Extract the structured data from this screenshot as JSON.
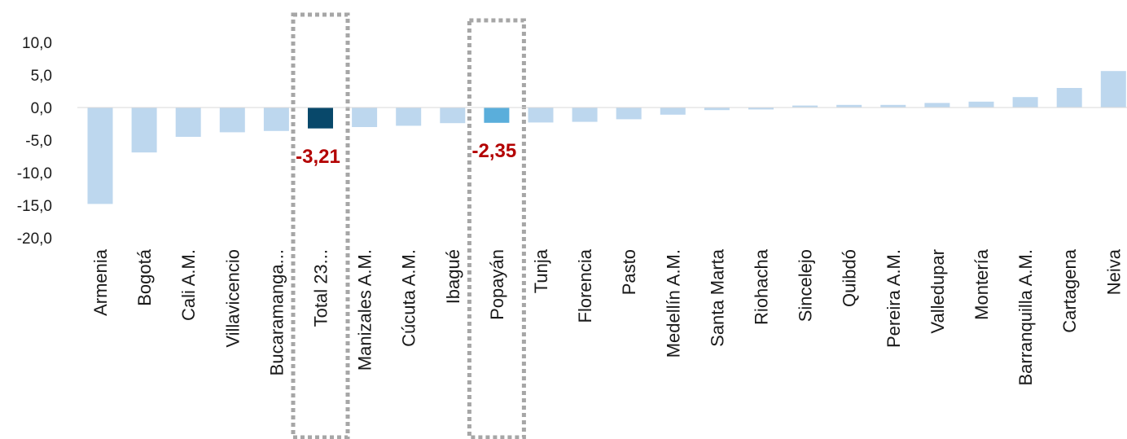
{
  "chart_data": {
    "type": "bar",
    "categories": [
      "Armenia",
      "Bogotá",
      "Cali A.M.",
      "Villavicencio",
      "Bucaramanga...",
      "Total 23...",
      "Manizales A.M.",
      "Cúcuta A.M.",
      "Ibagué",
      "Popayán",
      "Tunja",
      "Florencia",
      "Pasto",
      "Medellín A.M.",
      "Santa Marta",
      "Riohacha",
      "Sincelejo",
      "Quibdó",
      "Pereira A.M.",
      "Valledupar",
      "Montería",
      "Barranquilla A.M.",
      "Cartagena",
      "Neiva"
    ],
    "values": [
      -14.8,
      -6.9,
      -4.5,
      -3.8,
      -3.6,
      -3.21,
      -3.0,
      -2.8,
      -2.4,
      -2.35,
      -2.3,
      -2.2,
      -1.8,
      -1.1,
      -0.4,
      -0.3,
      0.3,
      0.4,
      0.4,
      0.7,
      0.9,
      1.6,
      3.0,
      5.6
    ],
    "ylim": [
      -20,
      10
    ],
    "yticks": [
      "10,0",
      "5,0",
      "0,0",
      "-5,0",
      "-10,0",
      "-15,0",
      "-20,0"
    ],
    "ytick_values": [
      10,
      5,
      0,
      -5,
      -10,
      -15,
      -20
    ],
    "data_labels": [
      {
        "category": "Total 23...",
        "text": "-3,21"
      },
      {
        "category": "Popayán",
        "text": "-2,35"
      }
    ],
    "highlighted": [
      "Total 23...",
      "Popayán"
    ],
    "title": "",
    "xlabel": "",
    "ylabel": "",
    "grid": false,
    "legend": "none"
  },
  "colors": {
    "bar_default": "#bdd7ee",
    "bar_total": "#08486a",
    "bar_popayan": "#5aaedb",
    "label_red": "#b30000",
    "highlight_box": "#a6a6a6",
    "axis": "#d9d9d9"
  }
}
